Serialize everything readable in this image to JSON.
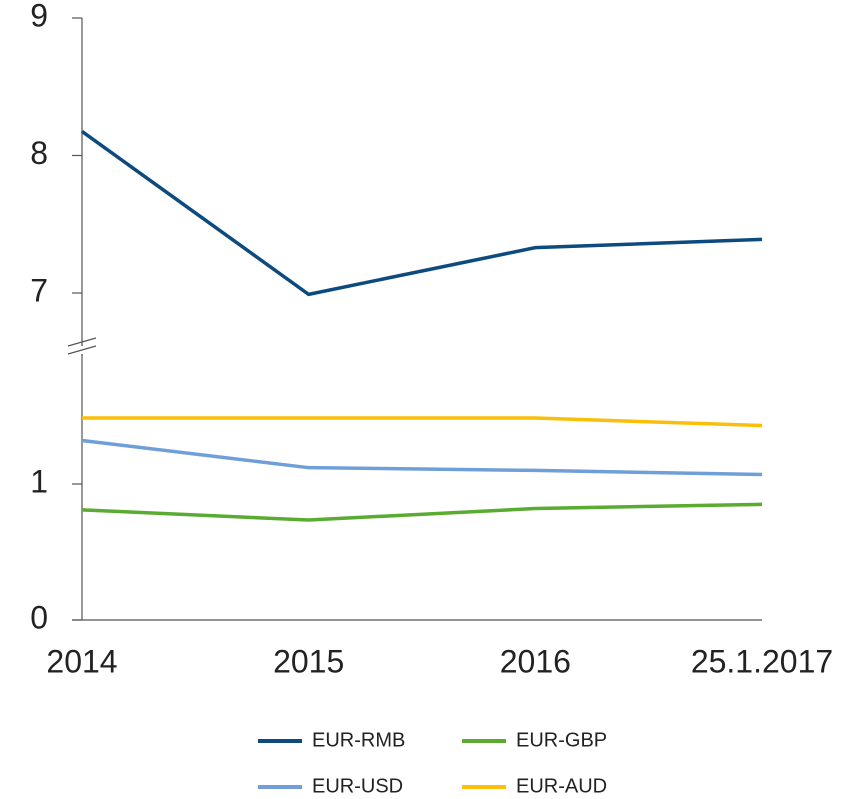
{
  "chart_data": {
    "type": "line",
    "categories": [
      "2014",
      "2015",
      "2016",
      "25.1.2017"
    ],
    "series": [
      {
        "name": "EUR-RMB",
        "color": "#0d4a7e",
        "values": [
          8.175,
          6.99,
          7.33,
          7.39
        ]
      },
      {
        "name": "EUR-GBP",
        "color": "#5aab31",
        "values": [
          0.81,
          0.735,
          0.82,
          0.85
        ]
      },
      {
        "name": "EUR-USD",
        "color": "#6f9fd8",
        "values": [
          1.32,
          1.12,
          1.1,
          1.07
        ]
      },
      {
        "name": "EUR-AUD",
        "color": "#fbbf0a",
        "values": [
          1.485,
          1.485,
          1.485,
          1.43
        ]
      }
    ],
    "ylim": [
      0,
      9
    ],
    "axis_break": [
      2,
      6.6
    ],
    "yticks": [
      0,
      1,
      7,
      8,
      9
    ],
    "grid": false
  }
}
